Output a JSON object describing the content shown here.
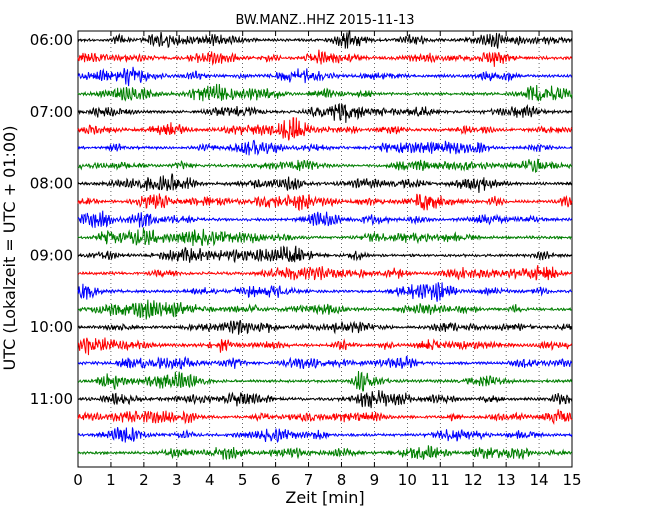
{
  "chart_data": {
    "type": "line",
    "title": "BW.MANZ..HHZ 2015-11-13",
    "xlabel": "Zeit  [min]",
    "ylabel": "UTC (Lokalzeit = UTC + 01:00)",
    "xlim": [
      0,
      15
    ],
    "x_ticks": [
      "0",
      "1",
      "2",
      "3",
      "4",
      "5",
      "6",
      "7",
      "8",
      "9",
      "10",
      "11",
      "12",
      "13",
      "14",
      "15"
    ],
    "y_tick_labels": [
      "06:00",
      "07:00",
      "08:00",
      "09:00",
      "10:00",
      "11:00"
    ],
    "grid": "vertical dotted at each minute",
    "trace_colors": [
      "#000000",
      "#ff0000",
      "#0000ff",
      "#007f00"
    ],
    "traces": [
      {
        "start": "06:00"
      },
      {
        "start": "06:15"
      },
      {
        "start": "06:30"
      },
      {
        "start": "06:45"
      },
      {
        "start": "07:00"
      },
      {
        "start": "07:15"
      },
      {
        "start": "07:30"
      },
      {
        "start": "07:45"
      },
      {
        "start": "08:00"
      },
      {
        "start": "08:15"
      },
      {
        "start": "08:30"
      },
      {
        "start": "08:45"
      },
      {
        "start": "09:00"
      },
      {
        "start": "09:15"
      },
      {
        "start": "09:30"
      },
      {
        "start": "09:45"
      },
      {
        "start": "10:00"
      },
      {
        "start": "10:15"
      },
      {
        "start": "10:30"
      },
      {
        "start": "10:45"
      },
      {
        "start": "11:00"
      },
      {
        "start": "11:15"
      },
      {
        "start": "11:30"
      },
      {
        "start": "11:45"
      }
    ]
  }
}
